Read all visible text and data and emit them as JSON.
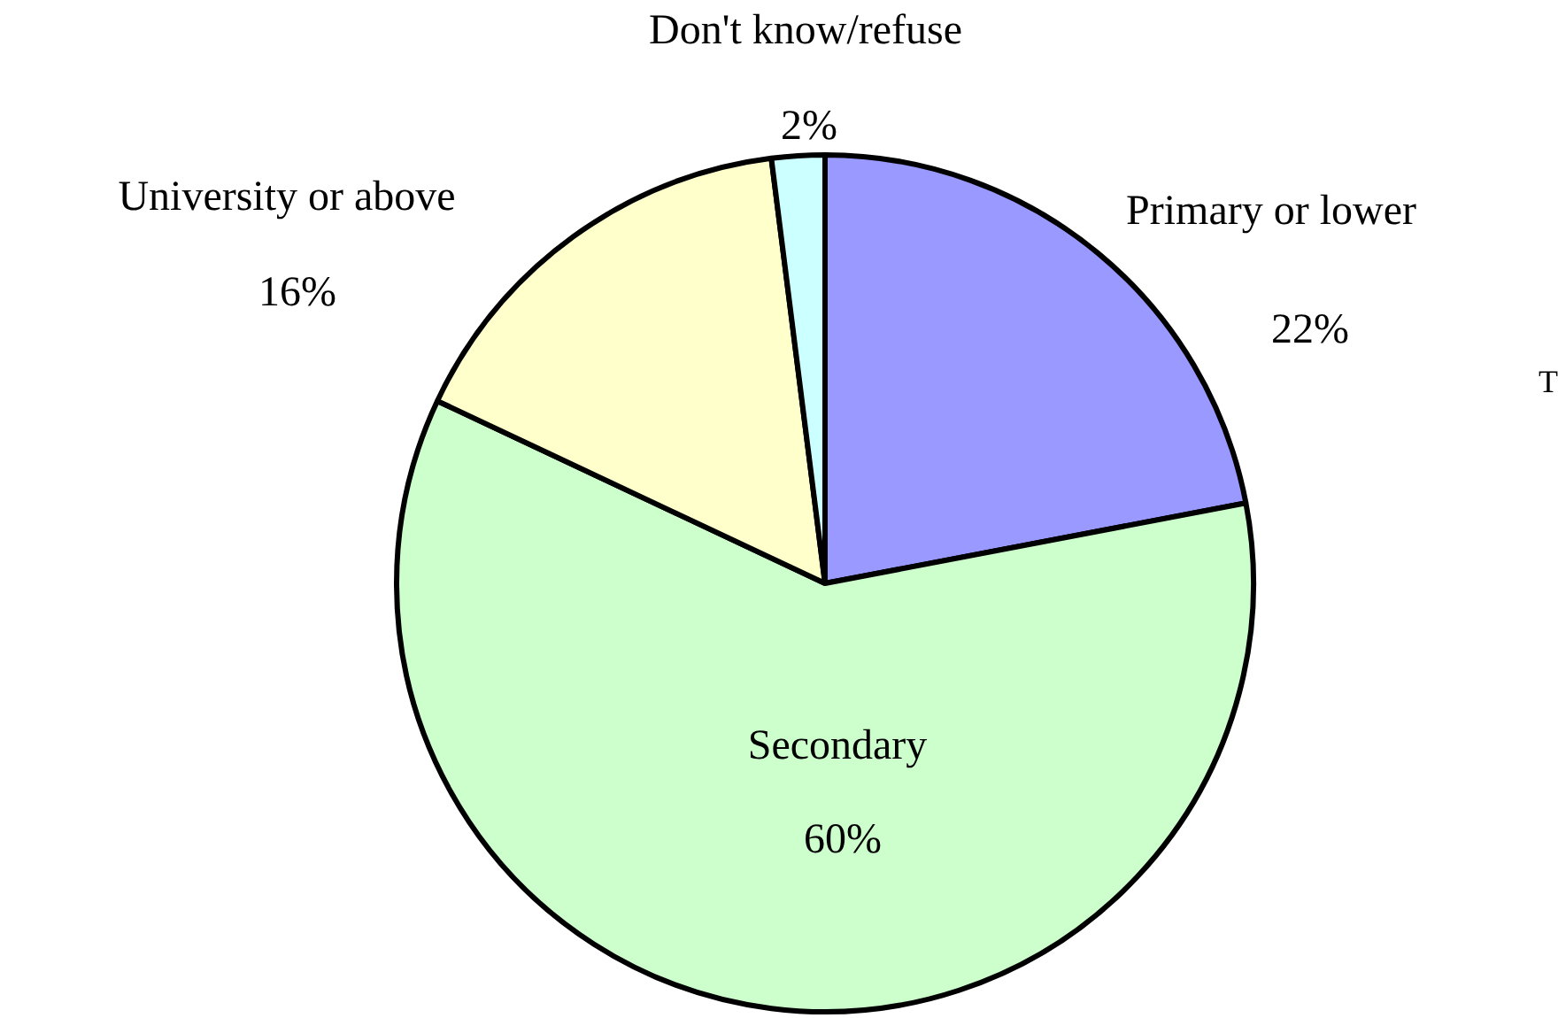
{
  "chart_data": {
    "type": "pie",
    "categories": [
      "Primary or lower",
      "Secondary",
      "University or above",
      "Don't know/refuse"
    ],
    "values": [
      22,
      60,
      16,
      2
    ],
    "colors": [
      "#9999ff",
      "#ccffcc",
      "#ffffcc",
      "#ccffff"
    ],
    "value_labels": [
      "22%",
      "60%",
      "16%",
      "2%"
    ],
    "annotations": [
      "T"
    ],
    "legend": false
  }
}
